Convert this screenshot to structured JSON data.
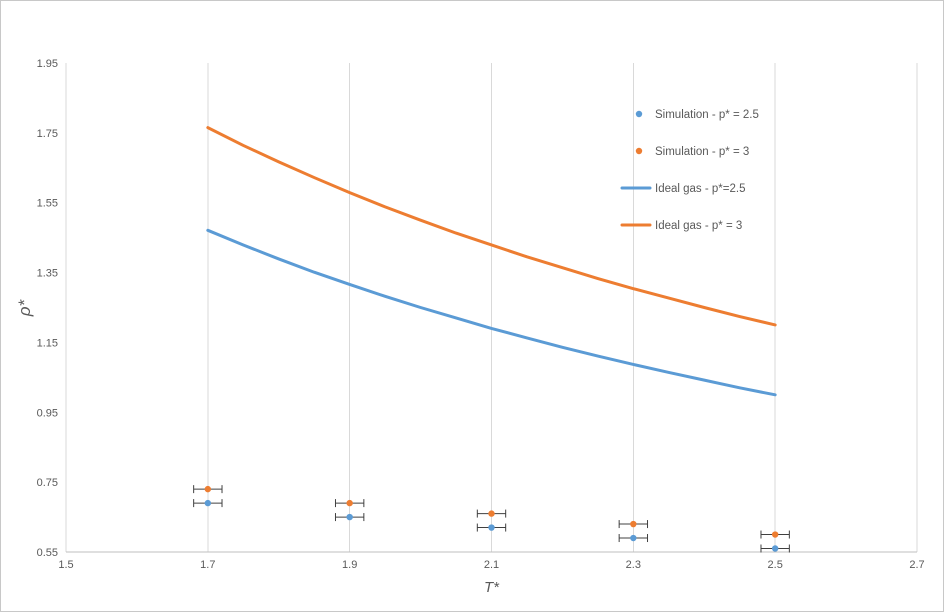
{
  "chart_data": {
    "type": "line+scatter",
    "title": "",
    "xlabel": "T*",
    "ylabel": "ρ*",
    "xlim": [
      1.5,
      2.7
    ],
    "ylim": [
      0.55,
      1.95
    ],
    "x_ticks": [
      1.5,
      1.7,
      1.9,
      2.1,
      2.3,
      2.5,
      2.7
    ],
    "x_tick_labels": [
      "1.5",
      "1.7",
      "1.9",
      "2.1",
      "2.3",
      "2.5",
      "2.7"
    ],
    "y_ticks": [
      0.55,
      0.75,
      0.95,
      1.15,
      1.35,
      1.55,
      1.75,
      1.95
    ],
    "y_tick_labels": [
      "0.55",
      "0.75",
      "0.95",
      "1.15",
      "1.35",
      "1.55",
      "1.75",
      "1.95"
    ],
    "grid": "vertical-only",
    "legend_position": "inside-upper-right",
    "colors": {
      "blue": "#5B9BD5",
      "orange": "#ED7D31",
      "grid": "#D9D9D9",
      "axis": "#BFBFBF",
      "text": "#595959",
      "error_bar": "#404040"
    },
    "series": [
      {
        "name": "Simulation - p* = 2.5",
        "type": "scatter",
        "color": "#5B9BD5",
        "x": [
          1.7,
          1.9,
          2.1,
          2.3,
          2.5
        ],
        "y": [
          0.69,
          0.65,
          0.62,
          0.59,
          0.56
        ],
        "x_error": 0.02
      },
      {
        "name": "Simulation - p* = 3",
        "type": "scatter",
        "color": "#ED7D31",
        "x": [
          1.7,
          1.9,
          2.1,
          2.3,
          2.5
        ],
        "y": [
          0.73,
          0.69,
          0.66,
          0.63,
          0.6
        ],
        "x_error": 0.02
      },
      {
        "name": "Ideal gas - p*=2.5",
        "type": "line",
        "color": "#5B9BD5",
        "x": [
          1.7,
          1.75,
          1.8,
          1.85,
          1.9,
          1.95,
          2.0,
          2.05,
          2.1,
          2.15,
          2.2,
          2.25,
          2.3,
          2.35,
          2.4,
          2.45,
          2.5
        ],
        "y": [
          1.471,
          1.429,
          1.389,
          1.351,
          1.316,
          1.282,
          1.25,
          1.22,
          1.19,
          1.163,
          1.136,
          1.111,
          1.087,
          1.064,
          1.042,
          1.02,
          1.0
        ]
      },
      {
        "name": "Ideal gas - p* = 3",
        "type": "line",
        "color": "#ED7D31",
        "x": [
          1.7,
          1.75,
          1.8,
          1.85,
          1.9,
          1.95,
          2.0,
          2.05,
          2.1,
          2.15,
          2.2,
          2.25,
          2.3,
          2.35,
          2.4,
          2.45,
          2.5
        ],
        "y": [
          1.765,
          1.714,
          1.667,
          1.622,
          1.579,
          1.538,
          1.5,
          1.463,
          1.429,
          1.395,
          1.364,
          1.333,
          1.304,
          1.277,
          1.25,
          1.224,
          1.2
        ]
      }
    ]
  }
}
